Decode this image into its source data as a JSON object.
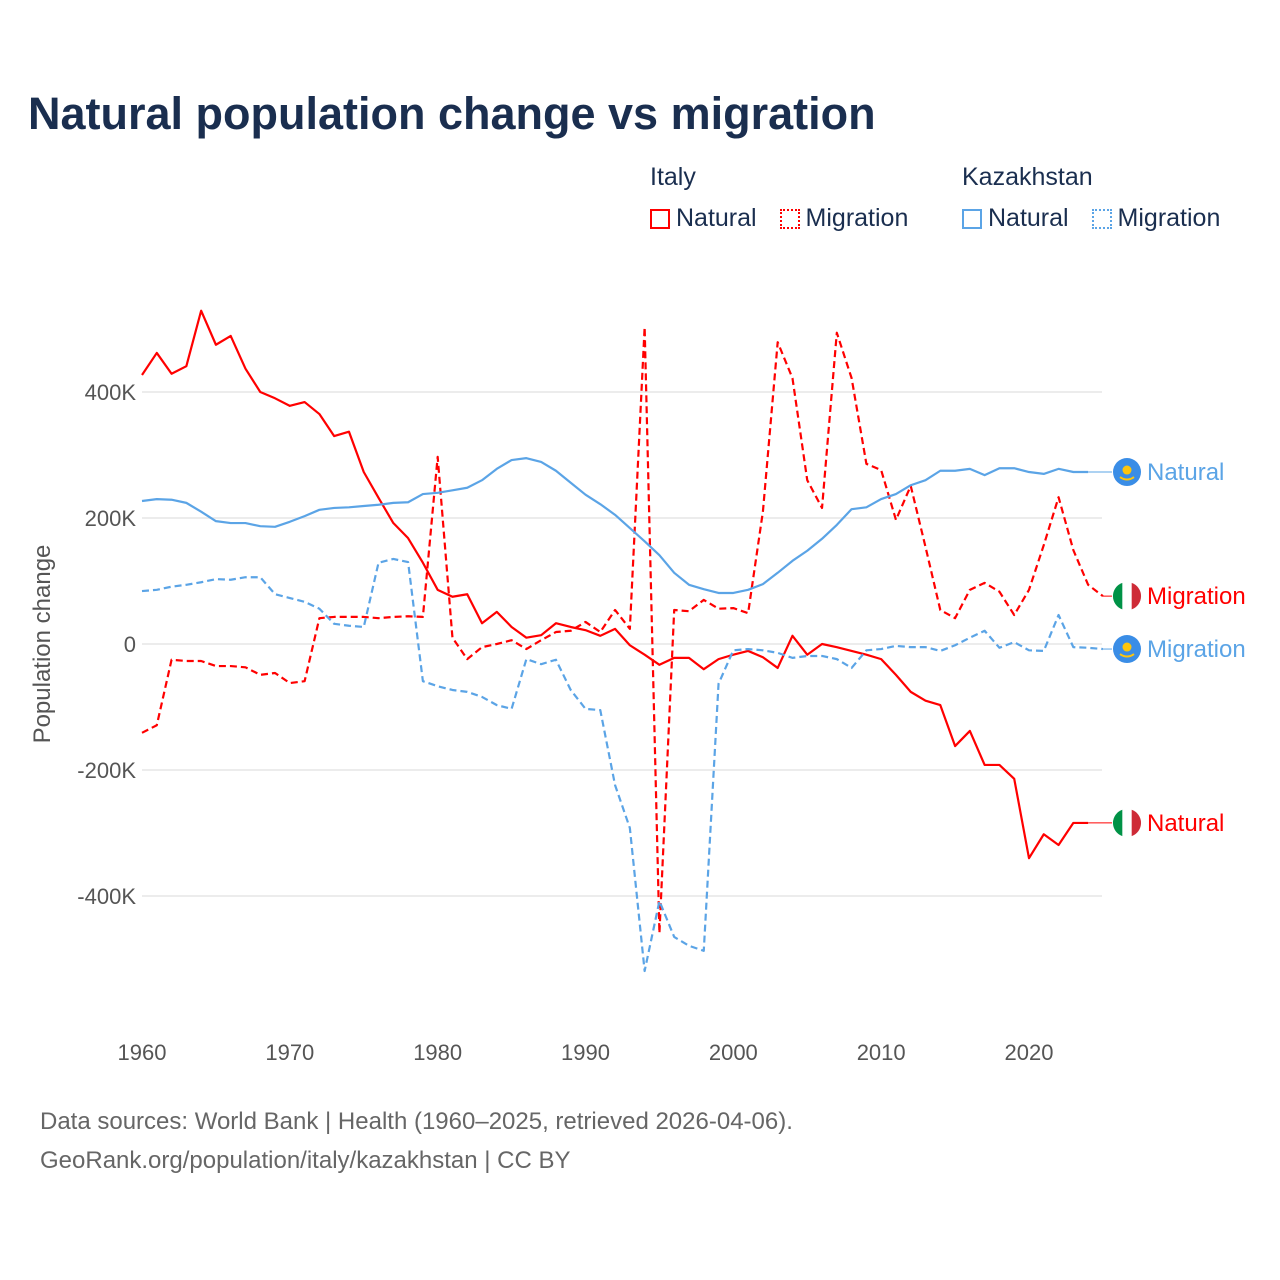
{
  "title": "Natural population change vs migration",
  "legend": [
    {
      "group": "Italy",
      "items": [
        {
          "label": "Natural",
          "style": "solid"
        },
        {
          "label": "Migration",
          "style": "dotted"
        }
      ],
      "color": "#ff0000"
    },
    {
      "group": "Kazakhstan",
      "items": [
        {
          "label": "Natural",
          "style": "solid"
        },
        {
          "label": "Migration",
          "style": "dotted"
        }
      ],
      "color": "#5ba4e6"
    }
  ],
  "footer": {
    "line1": "Data sources: World Bank | Health (1960–2025, retrieved 2026-04-06).",
    "line2": "GeoRank.org/population/italy/kazakhstan | CC BY"
  },
  "chart_data": {
    "type": "line",
    "title": "Natural population change vs migration",
    "xlabel": "",
    "ylabel": "Population change",
    "xlim": [
      1960,
      2025
    ],
    "ylim": [
      -560,
      560
    ],
    "y_unit": "thousands",
    "xticks": [
      1960,
      1970,
      1980,
      1990,
      2000,
      2010,
      2020
    ],
    "xtick_labels": [
      "1960",
      "1970",
      "1980",
      "1990",
      "2000",
      "2010",
      "2020"
    ],
    "yticks": [
      400,
      200,
      0,
      -200,
      -400
    ],
    "ytick_labels": [
      "400K",
      "200K",
      "0",
      "-200K",
      "-400K"
    ],
    "grid": "horizontal",
    "legend_position": "top-right",
    "series": [
      {
        "name": "Italy Natural",
        "end_label": "Natural",
        "country": "italy",
        "color": "#ff0000",
        "dash": false,
        "start": 1960,
        "values": [
          427,
          462,
          429,
          441,
          529,
          475,
          489,
          437,
          400,
          390,
          378,
          384,
          365,
          330,
          337,
          273,
          232,
          192,
          168,
          129,
          86,
          75,
          79,
          33,
          51,
          27,
          10,
          14,
          33,
          27,
          22,
          13,
          24,
          -2,
          -17,
          -33,
          -22,
          -22,
          -40,
          -24,
          -17,
          -11,
          -21,
          -38,
          13,
          -17,
          0,
          -5,
          -11,
          -17,
          -24,
          -49,
          -76,
          -90,
          -97,
          -162,
          -138,
          -192,
          -192,
          -214,
          -340,
          -302,
          -319,
          -284,
          -284
        ]
      },
      {
        "name": "Italy Migration",
        "end_label": "Migration",
        "country": "italy",
        "color": "#ff0000",
        "dash": true,
        "start": 1960,
        "values": [
          -141,
          -129,
          -25,
          -27,
          -27,
          -35,
          -35,
          -37,
          -49,
          -46,
          -62,
          -59,
          41,
          43,
          43,
          43,
          41,
          43,
          44,
          43,
          297,
          10,
          -24,
          -5,
          0,
          6,
          -8,
          6,
          19,
          21,
          35,
          19,
          54,
          24,
          503,
          -459,
          54,
          52,
          70,
          56,
          57,
          49,
          210,
          479,
          422,
          260,
          216,
          494,
          422,
          286,
          276,
          197,
          251,
          154,
          54,
          41,
          86,
          97,
          83,
          46,
          86,
          157,
          233,
          149,
          94,
          76
        ]
      },
      {
        "name": "Kazakhstan Natural",
        "end_label": "Natural",
        "country": "kazakhstan",
        "color": "#5ba4e6",
        "dash": false,
        "start": 1960,
        "values": [
          227,
          230,
          229,
          224,
          210,
          195,
          192,
          192,
          187,
          186,
          194,
          203,
          213,
          216,
          217,
          219,
          221,
          224,
          225,
          238,
          240,
          244,
          248,
          260,
          278,
          292,
          295,
          289,
          275,
          256,
          237,
          222,
          205,
          184,
          163,
          141,
          113,
          94,
          87,
          81,
          81,
          86,
          95,
          113,
          132,
          148,
          167,
          189,
          214,
          217,
          230,
          238,
          252,
          260,
          275,
          275,
          278,
          268,
          279,
          279,
          273,
          270,
          278,
          273,
          273
        ]
      },
      {
        "name": "Kazakhstan Migration",
        "end_label": "Migration",
        "country": "kazakhstan",
        "color": "#5ba4e6",
        "dash": true,
        "start": 1960,
        "values": [
          84,
          86,
          91,
          94,
          98,
          103,
          102,
          106,
          106,
          79,
          73,
          67,
          56,
          32,
          29,
          27,
          129,
          135,
          130,
          -59,
          -67,
          -73,
          -76,
          -84,
          -97,
          -103,
          -24,
          -32,
          -25,
          -73,
          -103,
          -105,
          -224,
          -292,
          -519,
          -408,
          -465,
          -479,
          -487,
          -63,
          -10,
          -8,
          -10,
          -14,
          -22,
          -19,
          -19,
          -24,
          -38,
          -10,
          -8,
          -3,
          -5,
          -5,
          -11,
          -2,
          10,
          21,
          -6,
          3,
          -10,
          -11,
          46,
          -5,
          -6,
          -8
        ]
      }
    ]
  }
}
